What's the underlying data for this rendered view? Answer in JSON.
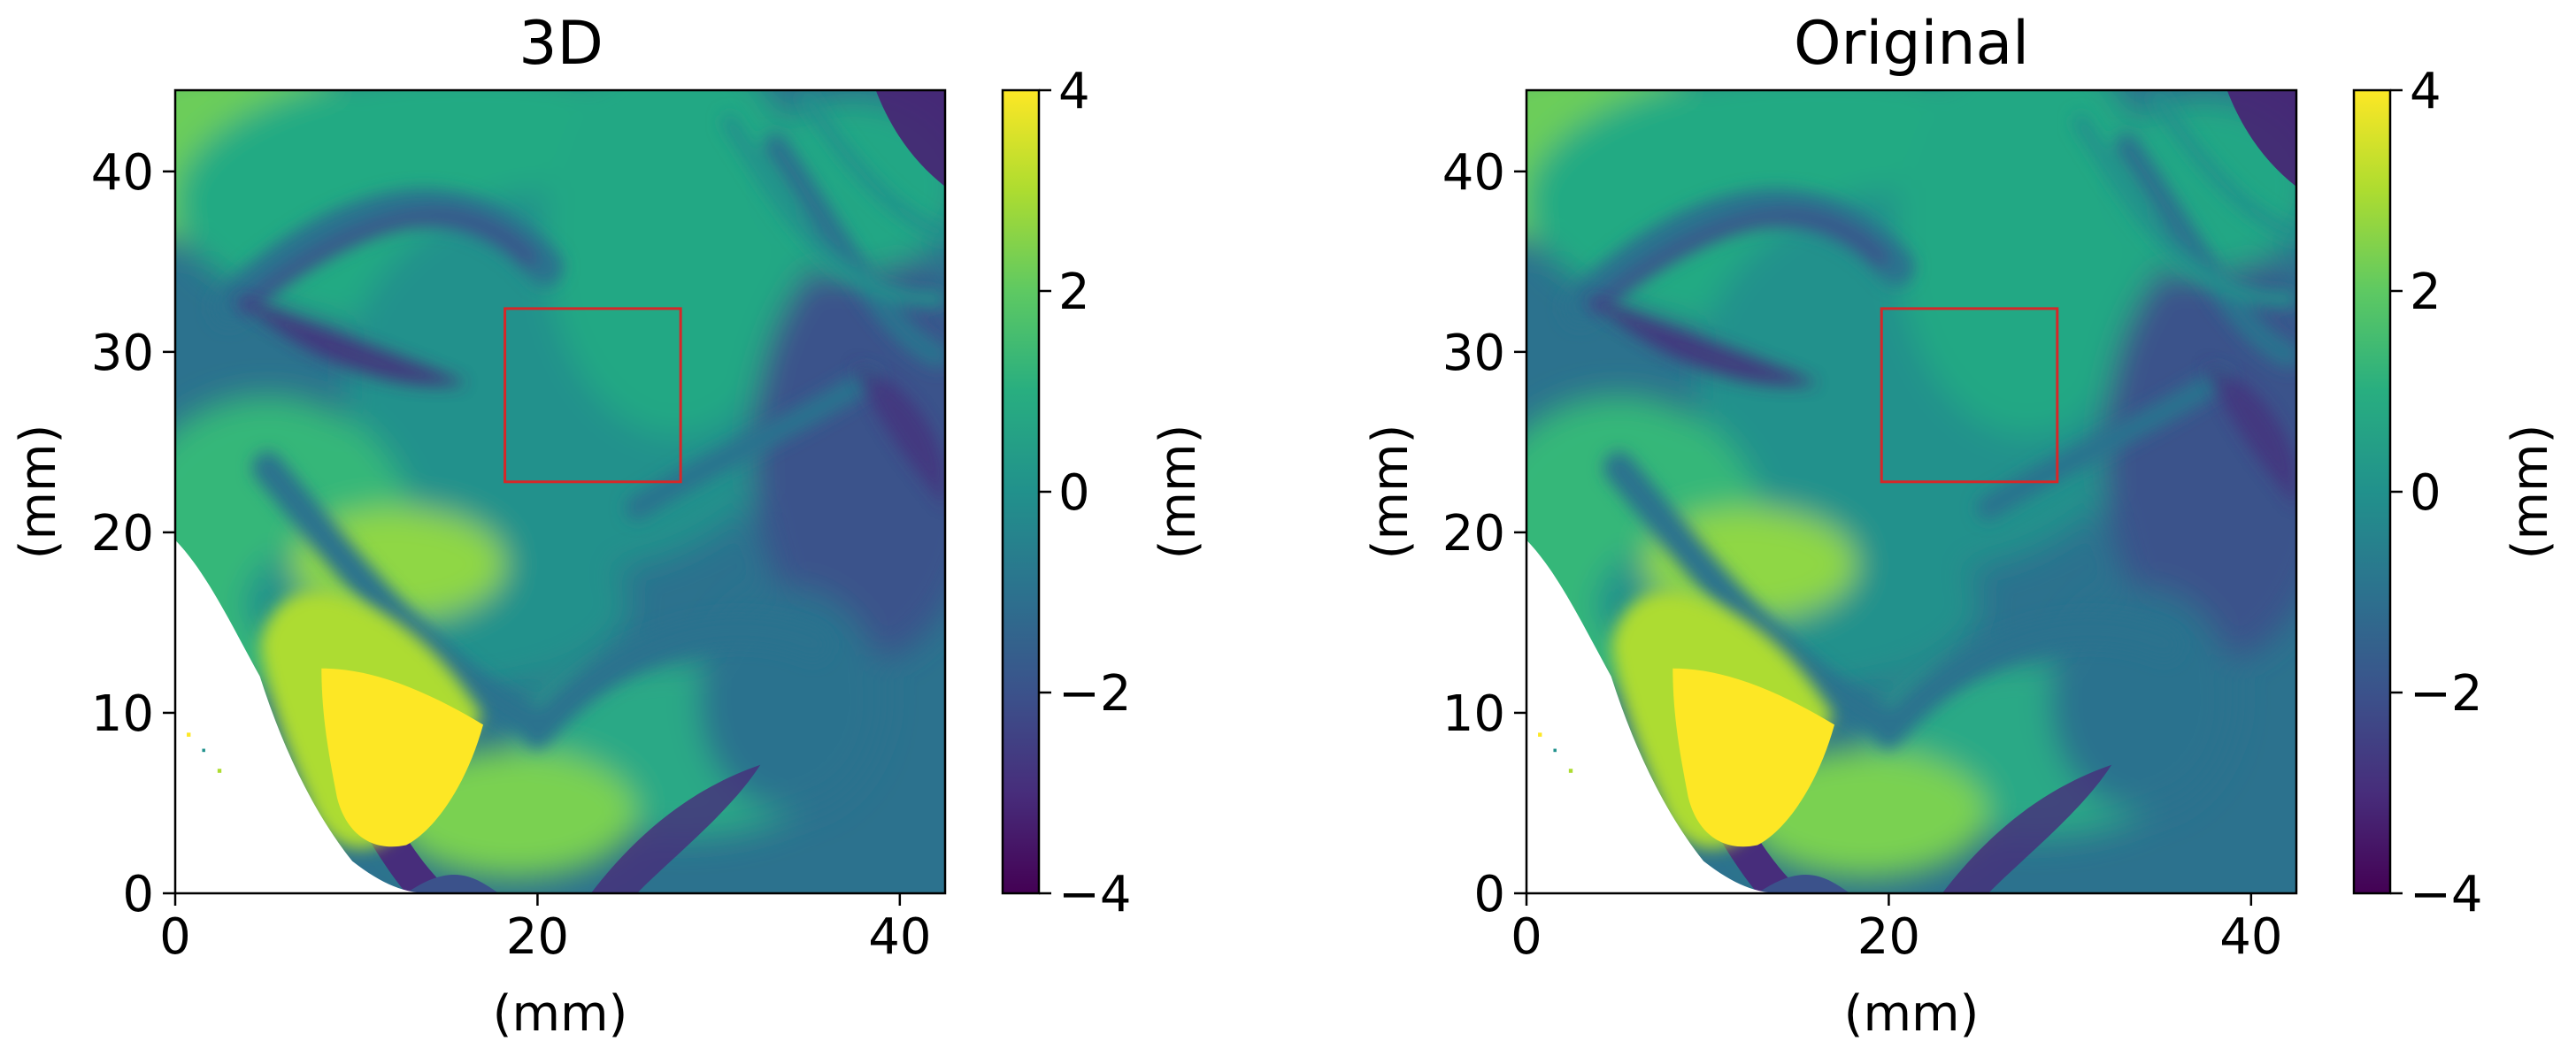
{
  "colormap": {
    "name": "viridis",
    "stops": [
      "#440154",
      "#472d7b",
      "#3b528b",
      "#2c728e",
      "#21918c",
      "#28ae80",
      "#5ec962",
      "#addc30",
      "#fde725"
    ]
  },
  "chart_data": [
    {
      "type": "heatmap",
      "title": "3D",
      "xlabel": "(mm)",
      "ylabel": "(mm)",
      "xlim": [
        0,
        42.5
      ],
      "ylim": [
        0,
        44.5
      ],
      "xticks": [
        0,
        20,
        40
      ],
      "yticks": [
        0,
        10,
        20,
        30,
        40
      ],
      "colorbar": {
        "label": "(mm)",
        "range": [
          -4,
          4
        ],
        "ticks": [
          4,
          2,
          0,
          -2,
          -4
        ],
        "tick_labels": [
          "4",
          "2",
          "0",
          "−2",
          "−4"
        ]
      },
      "roi_box": {
        "color": "#d62728",
        "x": [
          18.2,
          27.9
        ],
        "y": [
          22.8,
          32.4
        ]
      }
    },
    {
      "type": "heatmap",
      "title": "Original",
      "xlabel": "(mm)",
      "ylabel": "(mm)",
      "xlim": [
        0,
        42.5
      ],
      "ylim": [
        0,
        44.5
      ],
      "xticks": [
        0,
        20,
        40
      ],
      "yticks": [
        0,
        10,
        20,
        30,
        40
      ],
      "colorbar": {
        "label": "(mm)",
        "range": [
          -4,
          4
        ],
        "ticks": [
          4,
          2,
          0,
          -2,
          -4
        ],
        "tick_labels": [
          "4",
          "2",
          "0",
          "−2",
          "−4"
        ]
      },
      "roi_box": {
        "color": "#d62728",
        "x": [
          19.6,
          29.3
        ],
        "y": [
          22.8,
          32.4
        ]
      }
    }
  ]
}
